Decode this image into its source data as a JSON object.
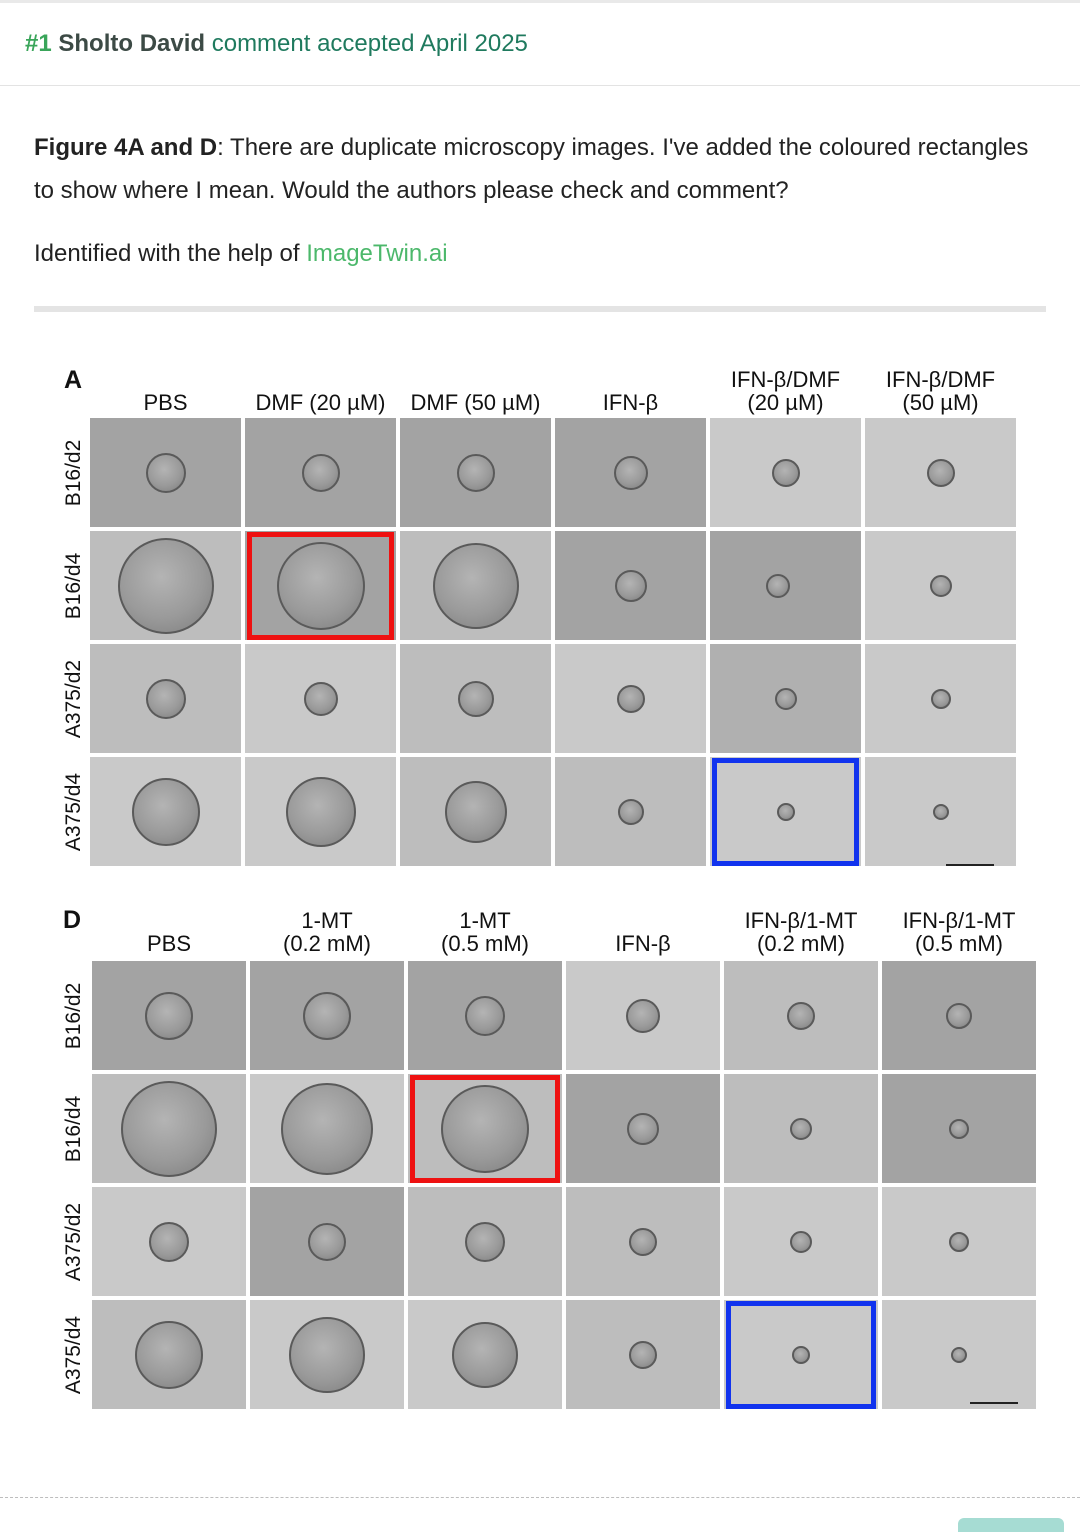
{
  "comment": {
    "number": "#1",
    "author": "Sholto David",
    "status": "comment accepted April 2025",
    "figure_ref": "Figure 4A and D",
    "body": ": There are duplicate microscopy images. I've added the coloured rectangles to show where I mean. Would the authors please check and comment?",
    "identified_prefix": "Identified with the help of ",
    "identified_link": "ImageTwin.ai"
  },
  "figure": {
    "panel_a": {
      "letter": "A",
      "columns": [
        "PBS",
        "DMF (20 µM)",
        "DMF (50 µM)",
        "IFN-β",
        "IFN-β/DMF\n(20 µM)",
        "IFN-β/DMF\n(50 µM)"
      ],
      "rows": [
        "B16/d2",
        "B16/d4",
        "A375/d2",
        "A375/d4"
      ]
    },
    "panel_d": {
      "letter": "D",
      "columns": [
        "PBS",
        "1-MT\n(0.2 mM)",
        "1-MT\n(0.5 mM)",
        "IFN-β",
        "IFN-β/1-MT\n(0.2 mM)",
        "IFN-β/1-MT\n(0.5 mM)"
      ],
      "rows": [
        "B16/d2",
        "B16/d4",
        "A375/d2",
        "A375/d4"
      ]
    },
    "highlight_colors": {
      "red": "#ee1111",
      "blue": "#1133ee"
    }
  }
}
